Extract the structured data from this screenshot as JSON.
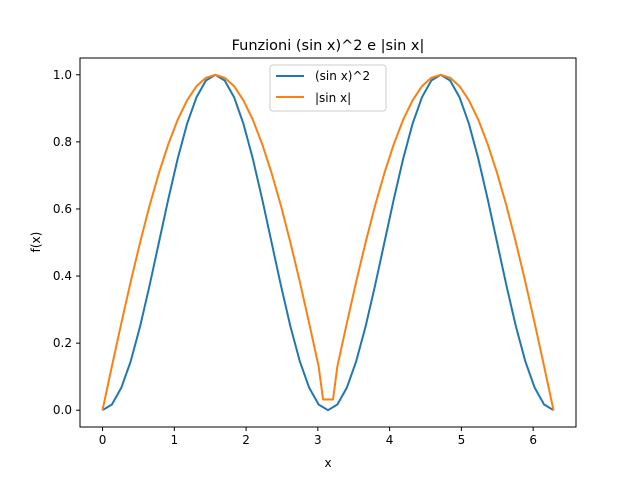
{
  "chart_data": {
    "type": "line",
    "title": "Funzioni (sin x)^2 e |sin x|",
    "xlabel": "x",
    "ylabel": "f(x)",
    "xlim": [
      -0.314,
      6.597
    ],
    "ylim": [
      -0.05,
      1.05
    ],
    "xticks": [
      "0",
      "1",
      "2",
      "3",
      "4",
      "5",
      "6"
    ],
    "yticks": [
      "0.0",
      "0.2",
      "0.4",
      "0.6",
      "0.8",
      "1.0"
    ],
    "grid": false,
    "legend_position": "top-center",
    "series": [
      {
        "name": "(sin x)^2",
        "color": "#1f77b4",
        "x": [
          0.0,
          0.131,
          0.262,
          0.393,
          0.524,
          0.654,
          0.785,
          0.916,
          1.047,
          1.178,
          1.309,
          1.44,
          1.571,
          1.702,
          1.833,
          1.963,
          2.094,
          2.225,
          2.356,
          2.487,
          2.618,
          2.749,
          2.88,
          3.011,
          3.142,
          3.272,
          3.403,
          3.534,
          3.665,
          3.796,
          3.927,
          4.058,
          4.189,
          4.32,
          4.451,
          4.581,
          4.712,
          4.843,
          4.974,
          5.105,
          5.236,
          5.367,
          5.498,
          5.629,
          5.76,
          5.89,
          6.021,
          6.152,
          6.283
        ],
        "y": [
          0.0,
          0.017,
          0.067,
          0.146,
          0.25,
          0.371,
          0.5,
          0.629,
          0.75,
          0.854,
          0.933,
          0.983,
          1.0,
          0.983,
          0.933,
          0.854,
          0.75,
          0.629,
          0.5,
          0.371,
          0.25,
          0.146,
          0.067,
          0.017,
          0.0,
          0.017,
          0.067,
          0.146,
          0.25,
          0.371,
          0.5,
          0.629,
          0.75,
          0.854,
          0.933,
          0.983,
          1.0,
          0.983,
          0.933,
          0.854,
          0.75,
          0.629,
          0.5,
          0.371,
          0.25,
          0.146,
          0.067,
          0.017,
          0.0
        ]
      },
      {
        "name": "|sin x|",
        "color": "#ff7f0e",
        "x": [
          0.0,
          0.131,
          0.262,
          0.393,
          0.524,
          0.654,
          0.785,
          0.916,
          1.047,
          1.178,
          1.309,
          1.44,
          1.571,
          1.702,
          1.833,
          1.963,
          2.094,
          2.225,
          2.356,
          2.487,
          2.618,
          2.749,
          2.88,
          3.011,
          3.073,
          3.211,
          3.272,
          3.403,
          3.534,
          3.665,
          3.796,
          3.927,
          4.058,
          4.189,
          4.32,
          4.451,
          4.581,
          4.712,
          4.843,
          4.974,
          5.105,
          5.236,
          5.367,
          5.498,
          5.629,
          5.76,
          5.89,
          6.021,
          6.152,
          6.283
        ],
        "y": [
          0.0,
          0.131,
          0.259,
          0.383,
          0.5,
          0.609,
          0.707,
          0.793,
          0.866,
          0.924,
          0.966,
          0.991,
          1.0,
          0.991,
          0.966,
          0.924,
          0.866,
          0.793,
          0.707,
          0.609,
          0.5,
          0.383,
          0.259,
          0.131,
          0.032,
          0.032,
          0.131,
          0.259,
          0.383,
          0.5,
          0.609,
          0.707,
          0.793,
          0.866,
          0.924,
          0.966,
          0.991,
          1.0,
          0.991,
          0.966,
          0.924,
          0.866,
          0.793,
          0.707,
          0.609,
          0.5,
          0.383,
          0.259,
          0.131,
          0.0
        ]
      }
    ]
  }
}
